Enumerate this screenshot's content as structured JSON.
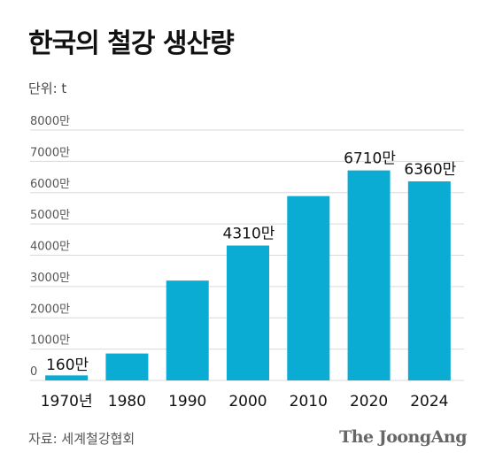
{
  "header": {
    "title": "한국의 철강 생산량",
    "unit_label": "단위: t"
  },
  "footer": {
    "source": "자료: 세계철강협회",
    "brand": "The JoongAng"
  },
  "colors": {
    "bar": "#0bacd4",
    "grid": "#d9d9d9",
    "axis_label": "#555555",
    "text": "#111111"
  },
  "chart_data": {
    "type": "bar",
    "title": "한국의 철강 생산량",
    "xlabel": "",
    "ylabel": "",
    "categories": [
      "1970년",
      "1980",
      "1990",
      "2000",
      "2010",
      "2020",
      "2024"
    ],
    "values": [
      160,
      860,
      3190,
      4310,
      5890,
      6710,
      6360
    ],
    "value_labels": [
      "160만",
      "",
      "",
      "4310만",
      "",
      "6710만",
      "6360만"
    ],
    "yticks": [
      0,
      1000,
      2000,
      3000,
      4000,
      5000,
      6000,
      7000,
      8000
    ],
    "ytick_labels": [
      "0",
      "1000만",
      "2000만",
      "3000만",
      "4000만",
      "5000만",
      "6000만",
      "7000만",
      "8000만"
    ],
    "ylim": [
      0,
      8000
    ],
    "grid": true
  }
}
